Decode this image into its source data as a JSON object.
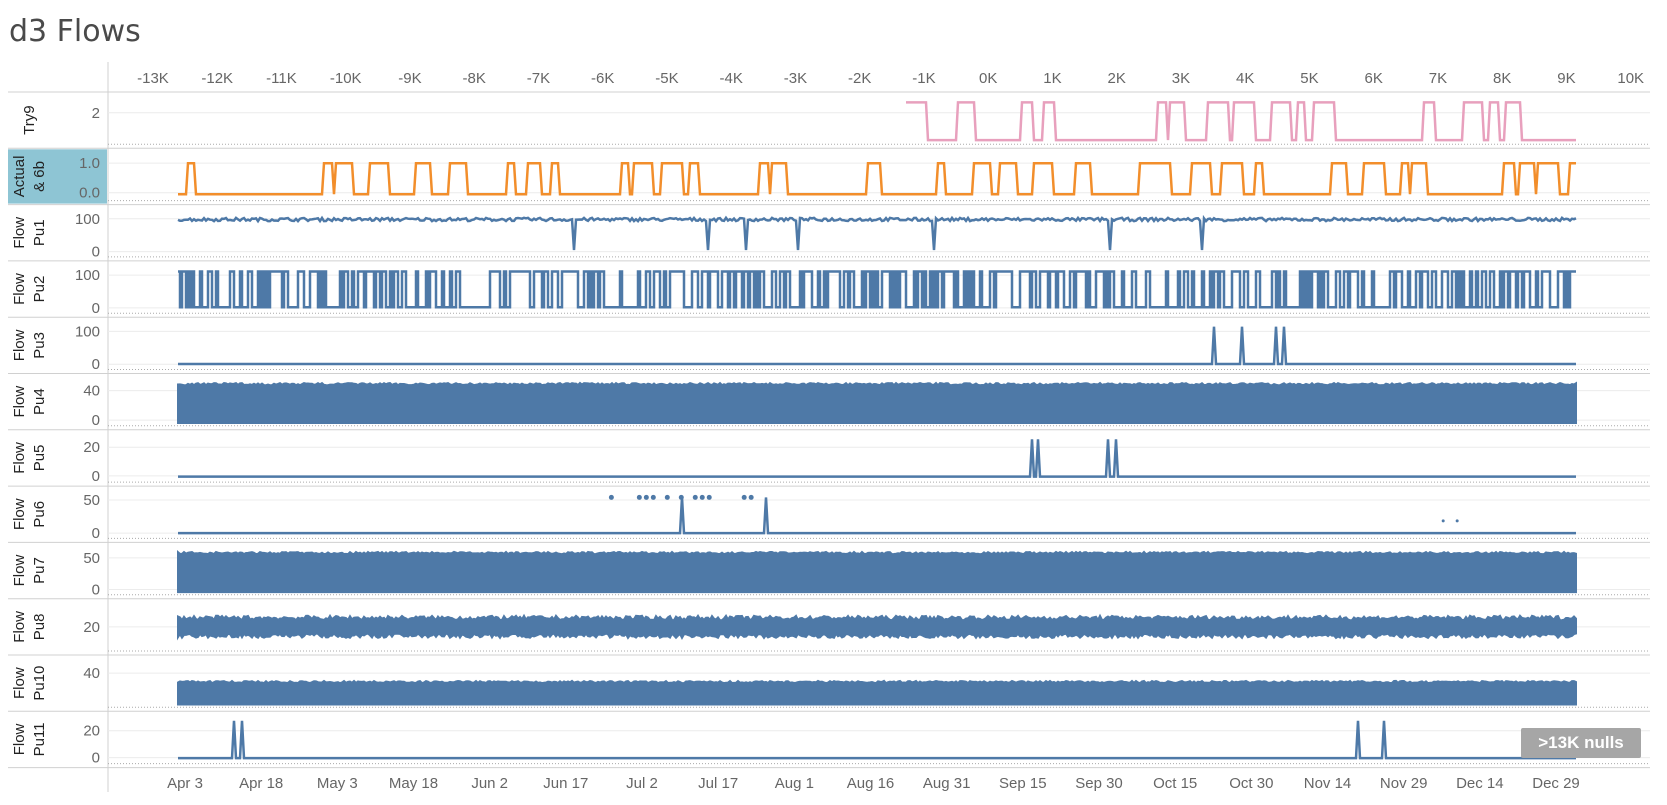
{
  "title": "d3 Flows",
  "null_badge": ">13K nulls",
  "colors": {
    "blue": "#4e79a7",
    "orange": "#f28e2b",
    "pink": "#e8a0bd",
    "highlight": "#8ec5d4"
  },
  "chart_data": {
    "type": "line",
    "title": "d3 Flows",
    "x_top": {
      "ticks": [
        "-13K",
        "-12K",
        "-11K",
        "-10K",
        "-9K",
        "-8K",
        "-7K",
        "-6K",
        "-5K",
        "-4K",
        "-3K",
        "-2K",
        "-1K",
        "0K",
        "1K",
        "2K",
        "3K",
        "4K",
        "5K",
        "6K",
        "7K",
        "8K",
        "9K",
        "10K"
      ],
      "range": [
        -13700,
        10300
      ]
    },
    "x_bottom": {
      "ticks": [
        "Apr 3",
        "Apr 18",
        "May 3",
        "May 18",
        "Jun 2",
        "Jun 17",
        "Jul 2",
        "Jul 17",
        "Aug 1",
        "Aug 16",
        "Aug 31",
        "Sep 15",
        "Sep 30",
        "Oct 15",
        "Oct 30",
        "Nov 14",
        "Nov 29",
        "Dec 14",
        "Dec 29"
      ]
    },
    "rows": [
      {
        "label": "Try9",
        "yticks": [
          "2"
        ],
        "ylim": [
          0,
          3
        ],
        "color": "pink",
        "kind": "step",
        "highlight": false
      },
      {
        "label": "Actual & 6b",
        "yticks": [
          "1.0",
          "0.0"
        ],
        "ylim": [
          -0.2,
          1.3
        ],
        "color": "orange",
        "kind": "step",
        "highlight": true
      },
      {
        "label": "Flow Pu1",
        "yticks": [
          "100",
          "0"
        ],
        "ylim": [
          -10,
          125
        ],
        "color": "blue",
        "kind": "dense-high",
        "highlight": false
      },
      {
        "label": "Flow Pu2",
        "yticks": [
          "100",
          "0"
        ],
        "ylim": [
          -10,
          125
        ],
        "color": "blue",
        "kind": "square",
        "highlight": false
      },
      {
        "label": "Flow Pu3",
        "yticks": [
          "100",
          "0"
        ],
        "ylim": [
          -10,
          125
        ],
        "color": "blue",
        "kind": "spikes",
        "highlight": false
      },
      {
        "label": "Flow Pu4",
        "yticks": [
          "40",
          "0"
        ],
        "ylim": [
          -5,
          55
        ],
        "color": "blue",
        "kind": "fill",
        "highlight": false
      },
      {
        "label": "Flow Pu5",
        "yticks": [
          "20",
          "0"
        ],
        "ylim": [
          -3,
          28
        ],
        "color": "blue",
        "kind": "spikes",
        "highlight": false
      },
      {
        "label": "Flow Pu6",
        "yticks": [
          "50",
          "0"
        ],
        "ylim": [
          -5,
          62
        ],
        "color": "blue",
        "kind": "dots",
        "highlight": false
      },
      {
        "label": "Flow Pu7",
        "yticks": [
          "50",
          "0"
        ],
        "ylim": [
          -5,
          65
        ],
        "color": "blue",
        "kind": "fill",
        "highlight": false
      },
      {
        "label": "Flow Pu8",
        "yticks": [
          "20"
        ],
        "ylim": [
          0,
          40
        ],
        "color": "blue",
        "kind": "band",
        "highlight": false
      },
      {
        "label": "Flow Pu10",
        "yticks": [
          "40"
        ],
        "ylim": [
          0,
          55
        ],
        "color": "blue",
        "kind": "fill-low",
        "highlight": false
      },
      {
        "label": "Flow Pu11",
        "yticks": [
          "20",
          "0"
        ],
        "ylim": [
          -3,
          30
        ],
        "color": "blue",
        "kind": "spikes",
        "highlight": false
      }
    ]
  }
}
